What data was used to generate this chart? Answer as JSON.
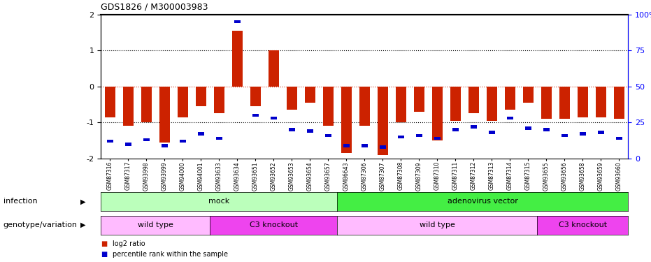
{
  "title": "GDS1826 / M300003983",
  "samples": [
    "GSM87316",
    "GSM87317",
    "GSM93998",
    "GSM93999",
    "GSM94000",
    "GSM94001",
    "GSM93633",
    "GSM93634",
    "GSM93651",
    "GSM93652",
    "GSM93653",
    "GSM93654",
    "GSM93657",
    "GSM86643",
    "GSM87306",
    "GSM87307",
    "GSM87308",
    "GSM87309",
    "GSM87310",
    "GSM87311",
    "GSM87312",
    "GSM87313",
    "GSM87314",
    "GSM87315",
    "GSM93655",
    "GSM93656",
    "GSM93658",
    "GSM93659",
    "GSM93660"
  ],
  "log2_ratio": [
    -0.85,
    -1.1,
    -1.0,
    -1.55,
    -0.85,
    -0.55,
    -0.75,
    1.55,
    -0.55,
    1.0,
    -0.65,
    -0.45,
    -1.1,
    -1.85,
    -1.1,
    -1.9,
    -1.0,
    -0.7,
    -1.5,
    -0.95,
    -0.75,
    -0.95,
    -0.65,
    -0.45,
    -0.9,
    -0.9,
    -0.85,
    -0.85,
    -0.9
  ],
  "percentile": [
    12,
    10,
    13,
    9,
    12,
    17,
    14,
    95,
    30,
    28,
    20,
    19,
    16,
    9,
    9,
    8,
    15,
    16,
    14,
    20,
    22,
    18,
    28,
    21,
    20,
    16,
    17,
    18,
    14
  ],
  "ylim": [
    -2,
    2
  ],
  "y2lim": [
    0,
    100
  ],
  "yticks": [
    -2,
    -1,
    0,
    1,
    2
  ],
  "y2ticks": [
    0,
    25,
    50,
    75,
    100
  ],
  "bar_color_red": "#cc2200",
  "bar_color_blue": "#0000cc",
  "infection_groups": [
    {
      "label": "mock",
      "start": 0,
      "end": 12,
      "color": "#bbffbb"
    },
    {
      "label": "adenovirus vector",
      "start": 13,
      "end": 28,
      "color": "#44ee44"
    }
  ],
  "genotype_groups": [
    {
      "label": "wild type",
      "start": 0,
      "end": 5,
      "color": "#ffbbff"
    },
    {
      "label": "C3 knockout",
      "start": 6,
      "end": 12,
      "color": "#ee44ee"
    },
    {
      "label": "wild type",
      "start": 13,
      "end": 23,
      "color": "#ffbbff"
    },
    {
      "label": "C3 knockout",
      "start": 24,
      "end": 28,
      "color": "#ee44ee"
    }
  ],
  "infection_label": "infection",
  "genotype_label": "genotype/variation",
  "legend_red": "log2 ratio",
  "legend_blue": "percentile rank within the sample"
}
